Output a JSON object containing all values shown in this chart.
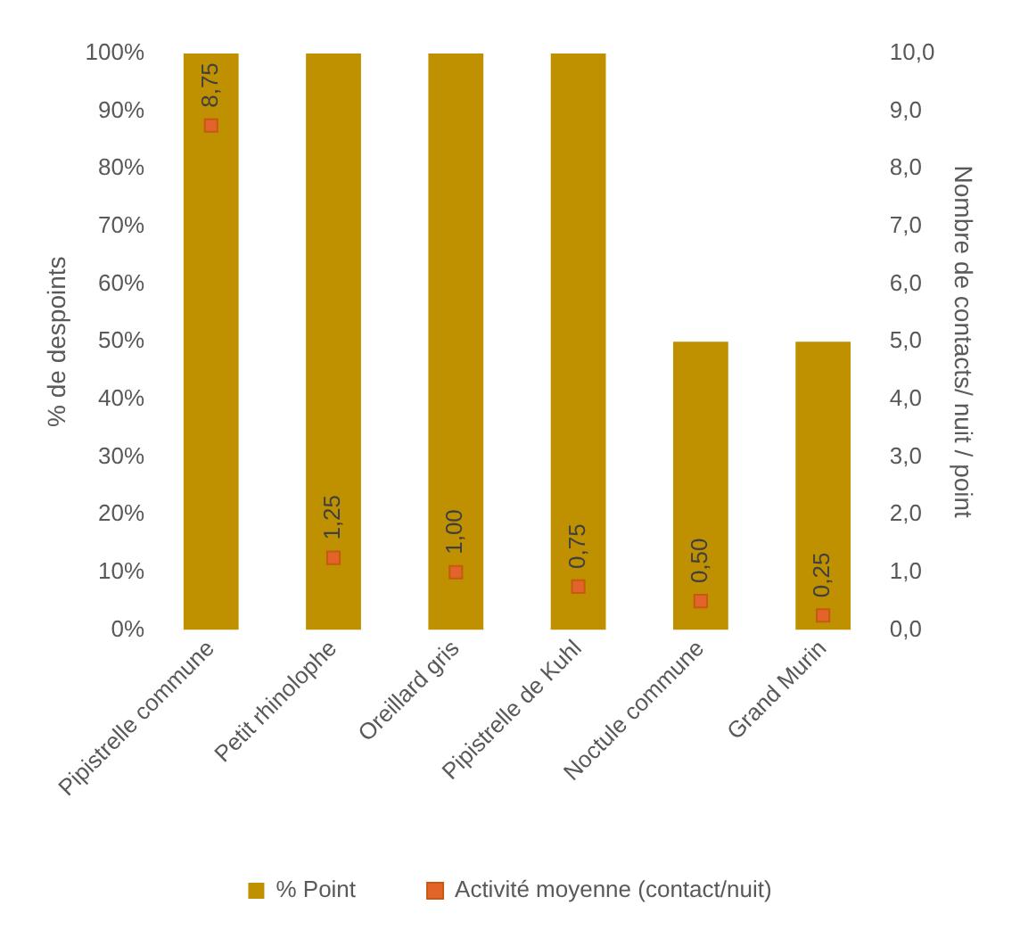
{
  "chart_data": {
    "type": "bar",
    "ylabel": "% de despoints",
    "y2label": "Nombre de contacts/ nuit / point",
    "categories": [
      "Pipistrelle commune",
      "Petit rhinolophe",
      "Oreillard gris",
      "Pipistrelle de Kuhl",
      "Noctule commune",
      "Grand Murin"
    ],
    "series": [
      {
        "name": "% Point",
        "color": "#bf9000",
        "values": [
          100,
          100,
          100,
          100,
          50,
          50
        ]
      },
      {
        "name": "Activité moyenne (contact/nuit)",
        "type": "scatter",
        "axis": "y2",
        "color": "#e2642a",
        "x": [
          "Pipistrelle commune",
          "Petit rhinolophe",
          "Oreillard gris",
          "Pipistrelle de Kuhl",
          "Noctule commune",
          "Grand Murin"
        ],
        "values": [
          8.75,
          1.25,
          1.0,
          0.75,
          0.5,
          0.25
        ],
        "value_labels": [
          "8,75",
          "1,25",
          "1,00",
          "0,75",
          "0,50",
          "0,25"
        ]
      }
    ],
    "ylim": [
      0,
      100
    ],
    "yticks": [
      {
        "value": 0,
        "label": "0%"
      },
      {
        "value": 10,
        "label": "10%"
      },
      {
        "value": 20,
        "label": "20%"
      },
      {
        "value": 30,
        "label": "30%"
      },
      {
        "value": 40,
        "label": "40%"
      },
      {
        "value": 50,
        "label": "50%"
      },
      {
        "value": 60,
        "label": "60%"
      },
      {
        "value": 70,
        "label": "70%"
      },
      {
        "value": 80,
        "label": "80%"
      },
      {
        "value": 90,
        "label": "90%"
      },
      {
        "value": 100,
        "label": "100%"
      }
    ],
    "y2lim": [
      0,
      10
    ],
    "y2ticks": [
      {
        "value": 0,
        "label": "0,0"
      },
      {
        "value": 1,
        "label": "1,0"
      },
      {
        "value": 2,
        "label": "2,0"
      },
      {
        "value": 3,
        "label": "3,0"
      },
      {
        "value": 4,
        "label": "4,0"
      },
      {
        "value": 5,
        "label": "5,0"
      },
      {
        "value": 6,
        "label": "6,0"
      },
      {
        "value": 7,
        "label": "7,0"
      },
      {
        "value": 8,
        "label": "8,0"
      },
      {
        "value": 9,
        "label": "9,0"
      },
      {
        "value": 10,
        "label": "10,0"
      }
    ],
    "grid": false,
    "legend": "bottom",
    "marker": "square"
  }
}
